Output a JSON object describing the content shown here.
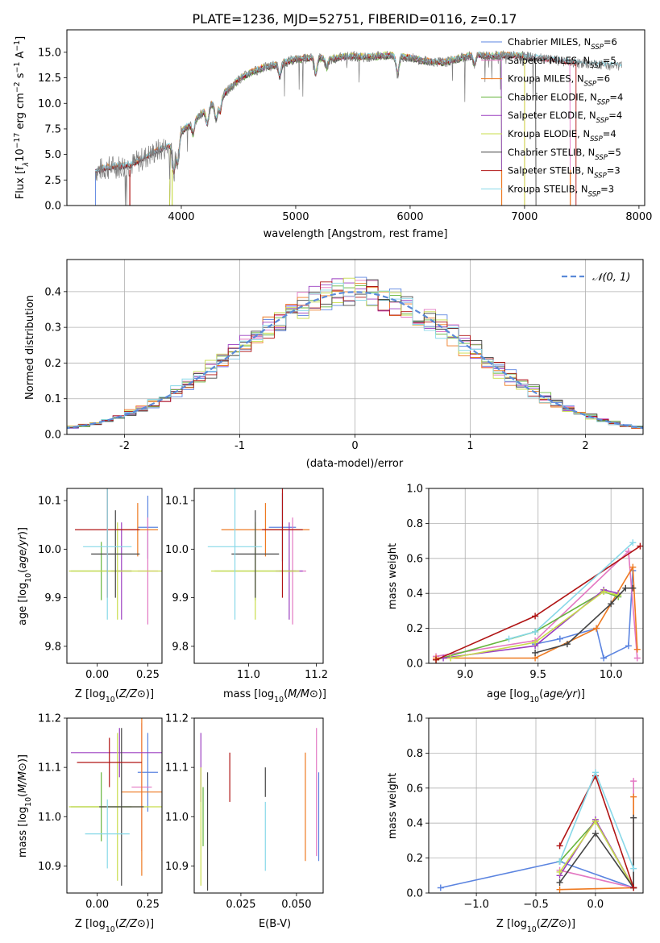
{
  "title": "PLATE=1236, MJD=52751, FIBERID=0116, z=0.17",
  "colors": {
    "Chabrier MILES": "#5b84e0",
    "Salpeter MILES": "#e377c2",
    "Kroupa MILES": "#ee7a22",
    "Chabrier ELODIE": "#66b53c",
    "Salpeter ELODIE": "#9b3fc0",
    "Kroupa ELODIE": "#c8dc4a",
    "Chabrier STELIB": "#444444",
    "Salpeter STELIB": "#b01414",
    "Kroupa STELIB": "#88d8e8",
    "data": "#7f7f7f",
    "gauss": "#5b8ad8"
  },
  "chart_data": [
    {
      "id": "spectrum",
      "type": "line",
      "xlabel": "wavelength [Angstrom, rest frame]",
      "ylabel_parts": [
        "Flux [f",
        "λ",
        "10",
        "−17",
        " erg cm",
        "−2",
        " s",
        "−1",
        " A",
        "−1",
        "]"
      ],
      "xlim": [
        3000,
        8050
      ],
      "ylim": [
        0,
        17.2
      ],
      "xticks": [
        4000,
        5000,
        6000,
        7000,
        8000
      ],
      "yticks": [
        0.0,
        2.5,
        5.0,
        7.5,
        10.0,
        12.5,
        15.0
      ],
      "continuum": [
        [
          3250,
          3.4
        ],
        [
          3400,
          3.8
        ],
        [
          3550,
          3.9
        ],
        [
          3700,
          4.8
        ],
        [
          3800,
          5.4
        ],
        [
          3900,
          5.8
        ],
        [
          4000,
          7.2
        ],
        [
          4100,
          8.2
        ],
        [
          4200,
          9.2
        ],
        [
          4300,
          10.2
        ],
        [
          4400,
          11.2
        ],
        [
          4500,
          12.3
        ],
        [
          4600,
          13.0
        ],
        [
          4700,
          13.4
        ],
        [
          4800,
          13.7
        ],
        [
          4900,
          14.0
        ],
        [
          5000,
          14.3
        ],
        [
          5100,
          14.4
        ],
        [
          5200,
          14.5
        ],
        [
          5300,
          14.3
        ],
        [
          5400,
          14.5
        ],
        [
          5500,
          14.6
        ],
        [
          5600,
          14.5
        ],
        [
          5700,
          14.6
        ],
        [
          5800,
          14.7
        ],
        [
          5900,
          14.6
        ],
        [
          6000,
          14.5
        ],
        [
          6100,
          14.2
        ],
        [
          6200,
          14.1
        ],
        [
          6300,
          14.0
        ],
        [
          6400,
          14.3
        ],
        [
          6500,
          14.6
        ],
        [
          6600,
          14.7
        ],
        [
          6700,
          14.6
        ],
        [
          6800,
          14.7
        ],
        [
          7000,
          14.6
        ],
        [
          7200,
          14.3
        ],
        [
          7400,
          14.0
        ],
        [
          7600,
          13.8
        ],
        [
          7850,
          13.6
        ]
      ],
      "absorption": [
        [
          3934,
          3.0
        ],
        [
          3969,
          2.6
        ],
        [
          4102,
          1.2
        ],
        [
          4227,
          1.5
        ],
        [
          4304,
          1.8
        ],
        [
          4340,
          1.4
        ],
        [
          4861,
          1.2
        ],
        [
          5175,
          1.6
        ],
        [
          5270,
          0.8
        ],
        [
          5890,
          1.8
        ],
        [
          6563,
          0.8
        ]
      ],
      "model_limits": [
        3250,
        7400,
        7000,
        6800,
        6800,
        7000,
        7100,
        7450,
        7850
      ],
      "legend": [
        {
          "label": "Chabrier MILES, N",
          "sub": "SSP",
          "tail": "=6"
        },
        {
          "label": "Salpeter MILES, N",
          "sub": "SSP",
          "tail": "=5"
        },
        {
          "label": "Kroupa MILES, N",
          "sub": "SSP",
          "tail": "=6"
        },
        {
          "label": "Chabrier ELODIE, N",
          "sub": "SSP",
          "tail": "=4"
        },
        {
          "label": "Salpeter ELODIE, N",
          "sub": "SSP",
          "tail": "=4"
        },
        {
          "label": "Kroupa ELODIE, N",
          "sub": "SSP",
          "tail": "=4"
        },
        {
          "label": "Chabrier STELIB, N",
          "sub": "SSP",
          "tail": "=5"
        },
        {
          "label": "Salpeter STELIB, N",
          "sub": "SSP",
          "tail": "=3"
        },
        {
          "label": "Kroupa STELIB, N",
          "sub": "SSP",
          "tail": "=3"
        }
      ]
    },
    {
      "id": "residuals",
      "type": "line",
      "xlabel": "(data-model)/error",
      "ylabel": "Normed distribution",
      "xlim": [
        -2.5,
        2.5
      ],
      "ylim": [
        0,
        0.49
      ],
      "xticks": [
        -2,
        -1,
        0,
        1,
        2
      ],
      "yticks": [
        0.0,
        0.1,
        0.2,
        0.3,
        0.4
      ],
      "bin_width": 0.1,
      "grid": true,
      "legend": "N(0,1)"
    },
    {
      "id": "age_vs_Z",
      "type": "scatter",
      "xlabel": "Z [log10(Z/Z⊙)]",
      "ylabel": "age [log10(age/yr)]",
      "xlim": [
        -0.15,
        0.32
      ],
      "ylim": [
        9.765,
        10.125
      ],
      "xticks": [
        0.0,
        0.25
      ],
      "xtick_labels": [
        "0.00",
        "0.25"
      ],
      "yticks": [
        9.8,
        9.9,
        10.0,
        10.1
      ],
      "points": [
        {
          "model": "Chabrier MILES",
          "x": 0.25,
          "y": 10.045,
          "xerr": 0.05,
          "yerr": 0.065
        },
        {
          "model": "Salpeter MILES",
          "x": 0.25,
          "y": 9.955,
          "xerr": 0.05,
          "yerr": 0.11
        },
        {
          "model": "Kroupa MILES",
          "x": 0.2,
          "y": 10.04,
          "xerr": 0.1,
          "yerr": 0.055
        },
        {
          "model": "Chabrier ELODIE",
          "x": 0.02,
          "y": 9.955,
          "xerr": 0.15,
          "yerr": 0.06
        },
        {
          "model": "Salpeter ELODIE",
          "x": 0.12,
          "y": 9.955,
          "xerr": 0.05,
          "yerr": 0.1
        },
        {
          "model": "Kroupa ELODIE",
          "x": 0.1,
          "y": 9.955,
          "xerr": 0.24,
          "yerr": 0.1
        },
        {
          "model": "Chabrier STELIB",
          "x": 0.09,
          "y": 9.99,
          "xerr": 0.12,
          "yerr": 0.09
        },
        {
          "model": "Salpeter STELIB",
          "x": 0.05,
          "y": 10.04,
          "xerr": 0.16,
          "yerr": 0.14
        },
        {
          "model": "Kroupa STELIB",
          "x": 0.05,
          "y": 10.005,
          "xerr": 0.12,
          "yerr": 0.15
        }
      ]
    },
    {
      "id": "age_vs_mass",
      "type": "scatter",
      "xlabel": "mass [log10(M/M⊙)]",
      "ylabel": "",
      "xlim": [
        10.84,
        11.22
      ],
      "ylim": [
        9.765,
        10.125
      ],
      "xticks": [
        11.0,
        11.2
      ],
      "xtick_labels": [
        "11.0",
        "11.2"
      ],
      "yticks": [
        9.8,
        9.9,
        10.0,
        10.1
      ],
      "points": [
        {
          "model": "Chabrier MILES",
          "x": 11.1,
          "y": 10.045,
          "xerr": 0.04,
          "yerr": 0.07
        },
        {
          "model": "Salpeter MILES",
          "x": 11.13,
          "y": 9.955,
          "xerr": 0.04,
          "yerr": 0.11
        },
        {
          "model": "Kroupa MILES",
          "x": 11.05,
          "y": 10.04,
          "xerr": 0.13,
          "yerr": 0.055
        },
        {
          "model": "Chabrier ELODIE",
          "x": 11.02,
          "y": 9.955,
          "xerr": 0.12,
          "yerr": 0.06
        },
        {
          "model": "Salpeter ELODIE",
          "x": 11.12,
          "y": 9.955,
          "xerr": 0.04,
          "yerr": 0.1
        },
        {
          "model": "Kroupa ELODIE",
          "x": 11.02,
          "y": 9.955,
          "xerr": 0.13,
          "yerr": 0.1
        },
        {
          "model": "Chabrier STELIB",
          "x": 11.02,
          "y": 9.99,
          "xerr": 0.07,
          "yerr": 0.09
        },
        {
          "model": "Salpeter STELIB",
          "x": 11.1,
          "y": 10.04,
          "xerr": 0.06,
          "yerr": 0.14
        },
        {
          "model": "Kroupa STELIB",
          "x": 10.96,
          "y": 10.005,
          "xerr": 0.08,
          "yerr": 0.15
        }
      ]
    },
    {
      "id": "mass_weight_vs_age",
      "type": "line",
      "xlabel": "age  [log10(age/yr)]",
      "ylabel": "mass weight",
      "xlim": [
        8.75,
        10.22
      ],
      "ylim": [
        0,
        1.0
      ],
      "xticks": [
        9.0,
        9.5,
        10.0
      ],
      "xtick_labels": [
        "9.0",
        "9.5",
        "10.0"
      ],
      "yticks": [
        0.0,
        0.2,
        0.4,
        0.6,
        0.8,
        1.0
      ],
      "yticklabels": [
        "0.0",
        "0.2",
        "0.4",
        "0.6",
        "0.8",
        "1.0"
      ],
      "grid": true,
      "series": [
        {
          "model": "Chabrier MILES",
          "x": [
            9.48,
            9.65,
            9.9,
            9.95,
            10.12,
            10.15
          ],
          "y": [
            0.11,
            0.14,
            0.2,
            0.03,
            0.1,
            0.53
          ]
        },
        {
          "model": "Salpeter MILES",
          "x": [
            8.8,
            9.48,
            10.12,
            10.18
          ],
          "y": [
            0.04,
            0.13,
            0.64,
            0.03
          ]
        },
        {
          "model": "Kroupa MILES",
          "x": [
            8.8,
            9.48,
            9.9,
            10.15,
            10.18
          ],
          "y": [
            0.03,
            0.03,
            0.2,
            0.55,
            0.08
          ]
        },
        {
          "model": "Chabrier ELODIE",
          "x": [
            8.8,
            9.48,
            9.95,
            10.05
          ],
          "y": [
            0.02,
            0.18,
            0.41,
            0.38
          ]
        },
        {
          "model": "Salpeter ELODIE",
          "x": [
            8.85,
            9.48,
            9.95,
            10.05
          ],
          "y": [
            0.03,
            0.1,
            0.42,
            0.4
          ]
        },
        {
          "model": "Kroupa ELODIE",
          "x": [
            8.9,
            9.48,
            9.95,
            10.05
          ],
          "y": [
            0.03,
            0.12,
            0.41,
            0.39
          ]
        },
        {
          "model": "Chabrier STELIB",
          "x": [
            9.48,
            9.7,
            10.0,
            10.1,
            10.15
          ],
          "y": [
            0.06,
            0.11,
            0.34,
            0.43,
            0.43
          ]
        },
        {
          "model": "Salpeter STELIB",
          "x": [
            8.8,
            9.48,
            10.2
          ],
          "y": [
            0.02,
            0.27,
            0.67
          ]
        },
        {
          "model": "Kroupa STELIB",
          "x": [
            9.3,
            9.48,
            10.15
          ],
          "y": [
            0.14,
            0.18,
            0.69
          ]
        }
      ]
    },
    {
      "id": "mass_vs_Z",
      "type": "scatter",
      "xlabel": "Z [log10(Z/Z⊙)]",
      "ylabel": "mass [log10(M/M⊙)]",
      "xlim": [
        -0.15,
        0.32
      ],
      "ylim": [
        10.845,
        11.2
      ],
      "xticks": [
        0.0,
        0.25
      ],
      "xtick_labels": [
        "0.00",
        "0.25"
      ],
      "yticks": [
        10.9,
        11.0,
        11.1,
        11.2
      ],
      "points": [
        {
          "model": "Chabrier MILES",
          "x": 0.25,
          "y": 11.09,
          "xerr": 0.05,
          "yerr": 0.08
        },
        {
          "model": "Salpeter MILES",
          "x": 0.22,
          "y": 11.06,
          "xerr": 0.05,
          "yerr": 0.13
        },
        {
          "model": "Kroupa MILES",
          "x": 0.22,
          "y": 11.05,
          "xerr": 0.1,
          "yerr": 0.17
        },
        {
          "model": "Chabrier ELODIE",
          "x": 0.02,
          "y": 11.02,
          "xerr": 0.15,
          "yerr": 0.07
        },
        {
          "model": "Salpeter ELODIE",
          "x": 0.11,
          "y": 11.13,
          "xerr": 0.24,
          "yerr": 0.05
        },
        {
          "model": "Kroupa ELODIE",
          "x": 0.1,
          "y": 11.02,
          "xerr": 0.24,
          "yerr": 0.15
        },
        {
          "model": "Chabrier STELIB",
          "x": 0.12,
          "y": 11.02,
          "xerr": 0.11,
          "yerr": 0.16
        },
        {
          "model": "Salpeter STELIB",
          "x": 0.06,
          "y": 11.11,
          "xerr": 0.16,
          "yerr": 0.05
        },
        {
          "model": "Kroupa STELIB",
          "x": 0.05,
          "y": 10.965,
          "xerr": 0.11,
          "yerr": 0.07
        }
      ]
    },
    {
      "id": "mass_vs_ebv",
      "type": "scatter",
      "xlabel": "E(B-V)",
      "ylabel": "",
      "xlim": [
        0.004,
        0.062
      ],
      "ylim": [
        10.845,
        11.2
      ],
      "xticks": [
        0.025,
        0.05
      ],
      "xtick_labels": [
        "0.025",
        "0.050"
      ],
      "yticks": [
        10.9,
        11.0,
        11.1,
        11.2
      ],
      "points": [
        {
          "model": "Chabrier MILES",
          "x": 0.06,
          "y": 11.0,
          "xerr": 0,
          "yerr": 0.09
        },
        {
          "model": "Salpeter MILES",
          "x": 0.059,
          "y": 11.05,
          "xerr": 0,
          "yerr": 0.13
        },
        {
          "model": "Kroupa MILES",
          "x": 0.054,
          "y": 11.02,
          "xerr": 0,
          "yerr": 0.11
        },
        {
          "model": "Chabrier ELODIE",
          "x": 0.008,
          "y": 11.0,
          "xerr": 0,
          "yerr": 0.06
        },
        {
          "model": "Salpeter ELODIE",
          "x": 0.007,
          "y": 11.1,
          "xerr": 0,
          "yerr": 0.07
        },
        {
          "model": "Kroupa ELODIE",
          "x": 0.007,
          "y": 10.98,
          "xerr": 0,
          "yerr": 0.12
        },
        {
          "model": "Chabrier STELIB",
          "x": 0.036,
          "y": 11.07,
          "xerr": 0,
          "yerr": 0.03
        },
        {
          "model": "Salpeter STELIB",
          "x": 0.02,
          "y": 11.08,
          "xerr": 0,
          "yerr": 0.05
        },
        {
          "model": "Kroupa STELIB",
          "x": 0.036,
          "y": 10.96,
          "xerr": 0,
          "yerr": 0.07
        },
        {
          "model": "Chabrier STELIB",
          "x": 0.01,
          "y": 10.97,
          "xerr": 0,
          "yerr": 0.12
        }
      ]
    },
    {
      "id": "mass_weight_vs_Z",
      "type": "line",
      "xlabel": "Z [log10(Z/Z⊙)]",
      "ylabel": "mass weight",
      "xlim": [
        -1.4,
        0.4
      ],
      "ylim": [
        0,
        1.0
      ],
      "xticks": [
        -1.0,
        -0.5,
        0.0
      ],
      "xtick_labels": [
        "−1.0",
        "−0.5",
        "0.0"
      ],
      "yticks": [
        0.0,
        0.2,
        0.4,
        0.6,
        0.8,
        1.0
      ],
      "yticklabels": [
        "0.0",
        "0.2",
        "0.4",
        "0.6",
        "0.8",
        "1.0"
      ],
      "grid": true,
      "series": [
        {
          "model": "Chabrier MILES",
          "x": [
            -1.3,
            -0.3,
            0.32
          ],
          "y": [
            0.03,
            0.18,
            0.03
          ]
        },
        {
          "model": "Salpeter MILES",
          "x": [
            -0.3,
            0.32,
            0.32
          ],
          "y": [
            0.13,
            0.03,
            0.64
          ]
        },
        {
          "model": "Kroupa MILES",
          "x": [
            -0.3,
            0.32,
            0.32
          ],
          "y": [
            0.02,
            0.03,
            0.55
          ]
        },
        {
          "model": "Chabrier ELODIE",
          "x": [
            -0.3,
            0.0,
            0.32
          ],
          "y": [
            0.18,
            0.41,
            0.03
          ]
        },
        {
          "model": "Salpeter ELODIE",
          "x": [
            -0.3,
            0.0,
            0.32
          ],
          "y": [
            0.1,
            0.42,
            0.03
          ]
        },
        {
          "model": "Kroupa ELODIE",
          "x": [
            -0.3,
            0.0,
            0.32
          ],
          "y": [
            0.12,
            0.41,
            0.03
          ]
        },
        {
          "model": "Chabrier STELIB",
          "x": [
            -0.3,
            0.0,
            0.32,
            0.32
          ],
          "y": [
            0.06,
            0.34,
            0.03,
            0.43
          ]
        },
        {
          "model": "Salpeter STELIB",
          "x": [
            -0.3,
            0.0,
            0.32
          ],
          "y": [
            0.27,
            0.67,
            0.03
          ]
        },
        {
          "model": "Kroupa STELIB",
          "x": [
            -0.3,
            0.0,
            0.32
          ],
          "y": [
            0.18,
            0.69,
            0.14
          ]
        }
      ]
    }
  ]
}
